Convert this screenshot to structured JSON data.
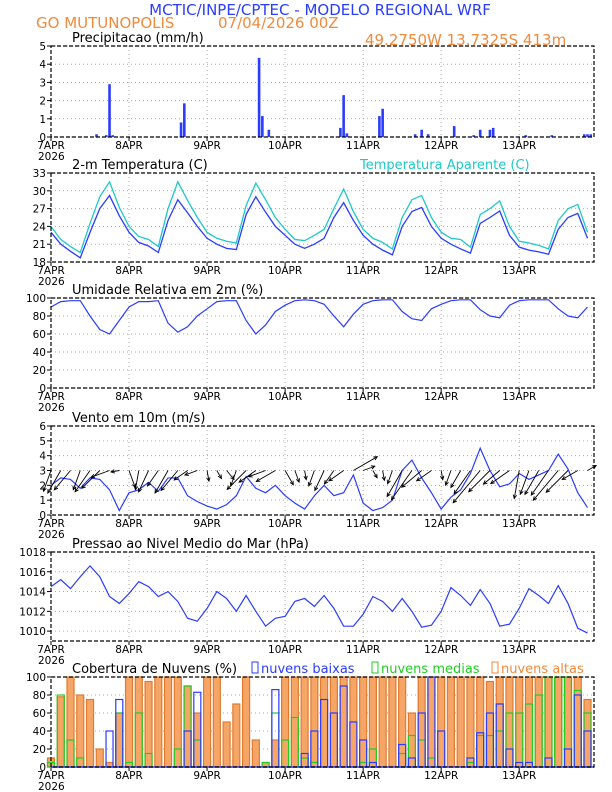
{
  "header": {
    "title": "MCTIC/INPE/CPTEC - MODELO REGIONAL WRF",
    "location": "GO MUTUNOPOLIS",
    "run": "07/04/2026 00Z",
    "coords": "49.2750W 13.7325S 413m"
  },
  "colors": {
    "title": "#2a3cff",
    "orange": "#f08a3c",
    "blue": "#2a3cff",
    "cyan": "#1ec8c8",
    "green": "#22cc22",
    "high_fill": "#f5a566"
  },
  "x_axis": {
    "labels": [
      "7APR",
      "8APR",
      "9APR",
      "10APR",
      "11APR",
      "12APR",
      "13APR"
    ],
    "year": "2026",
    "hours_range": [
      0,
      167
    ]
  },
  "chart_data": [
    {
      "id": "precip",
      "type": "bar",
      "title": "Precipitacao (mm/h)",
      "ylim": [
        0,
        5
      ],
      "yticks": [
        "0",
        "1",
        "2",
        "3",
        "4",
        "5"
      ],
      "series": [
        {
          "name": "precip",
          "step_hours": 1,
          "points": [
            [
              14,
              0.15
            ],
            [
              17,
              0.1
            ],
            [
              18,
              2.9
            ],
            [
              19,
              0.1
            ],
            [
              40,
              0.8
            ],
            [
              41,
              1.85
            ],
            [
              64,
              4.35
            ],
            [
              65,
              1.15
            ],
            [
              67,
              0.4
            ],
            [
              89,
              0.5
            ],
            [
              90,
              2.3
            ],
            [
              91,
              0.2
            ],
            [
              101,
              1.15
            ],
            [
              102,
              1.55
            ],
            [
              112,
              0.15
            ],
            [
              114,
              0.4
            ],
            [
              116,
              0.15
            ],
            [
              124,
              0.6
            ],
            [
              130,
              0.1
            ],
            [
              132,
              0.4
            ],
            [
              135,
              0.4
            ],
            [
              136,
              0.5
            ],
            [
              146,
              0.1
            ],
            [
              154,
              0.1
            ],
            [
              164,
              0.15
            ],
            [
              165,
              0.15
            ],
            [
              166,
              0.15
            ]
          ]
        }
      ]
    },
    {
      "id": "temp",
      "type": "line",
      "title": "2-m Temperatura (C)",
      "legend": "Temperatura Aparente (C)",
      "ylim": [
        18,
        33
      ],
      "yticks": [
        "18",
        "21",
        "24",
        "27",
        "30",
        "33"
      ],
      "series": [
        {
          "name": "Temperatura",
          "step_hours": 3,
          "values": [
            23,
            21,
            19.8,
            18.7,
            23,
            27,
            29.2,
            25.8,
            23,
            21.3,
            20.7,
            19.6,
            25,
            28.5,
            26.3,
            24,
            22,
            21,
            20.3,
            20.1,
            26,
            29,
            26.4,
            24,
            22.5,
            21,
            20.3,
            21,
            22,
            25.5,
            28,
            25,
            22.5,
            21,
            20,
            19.2,
            24,
            26.5,
            27.2,
            24,
            22,
            21,
            20.2,
            19.5,
            24.5,
            25.5,
            26.6,
            22.5,
            20.5,
            20,
            19.7,
            19.3,
            23.5,
            25.5,
            26.2,
            22
          ]
        },
        {
          "name": "Temperatura Aparente",
          "step_hours": 3,
          "values": [
            24,
            21.8,
            20.6,
            19.6,
            24.5,
            29,
            31.5,
            27.2,
            24,
            22.3,
            21.8,
            20.6,
            27,
            31.5,
            28.4,
            25.5,
            23,
            22,
            21.5,
            21.2,
            27.5,
            31.3,
            28.5,
            25.5,
            23.5,
            21.8,
            21.6,
            22.5,
            23.5,
            27,
            30.3,
            26.5,
            23.5,
            22,
            21.3,
            20.2,
            25.5,
            28.5,
            29.2,
            25.5,
            23,
            22,
            21.8,
            20.5,
            26,
            27,
            28.3,
            24,
            21.5,
            21.2,
            20.8,
            20.2,
            25,
            27,
            27.7,
            23
          ]
        }
      ]
    },
    {
      "id": "rh",
      "type": "line",
      "title": "Umidade Relativa em 2m (%)",
      "ylim": [
        0,
        100
      ],
      "yticks": [
        "0",
        "20",
        "40",
        "60",
        "80",
        "100"
      ],
      "series": [
        {
          "name": "UR",
          "step_hours": 3,
          "values": [
            90,
            96,
            97,
            97,
            80,
            65,
            60,
            75,
            90,
            96,
            96,
            97,
            72,
            62,
            68,
            80,
            88,
            96,
            97,
            97,
            75,
            60,
            70,
            85,
            92,
            97,
            98,
            97,
            93,
            80,
            68,
            82,
            93,
            97,
            98,
            98,
            85,
            77,
            75,
            88,
            93,
            97,
            98,
            98,
            87,
            80,
            78,
            92,
            97,
            98,
            98,
            98,
            88,
            80,
            78,
            90
          ]
        }
      ]
    },
    {
      "id": "wind",
      "type": "line",
      "title": "Vento em 10m (m/s)",
      "ylim": [
        0,
        6
      ],
      "yticks": [
        "0",
        "1",
        "2",
        "3",
        "4",
        "5",
        "6"
      ],
      "series": [
        {
          "name": "speed",
          "step_hours": 3,
          "values": [
            2,
            2.5,
            2.4,
            1.8,
            2.5,
            2.4,
            1.7,
            0.3,
            1.5,
            1.7,
            2.2,
            1.6,
            2.5,
            2.5,
            1.3,
            0.9,
            0.6,
            0.4,
            0.7,
            1.3,
            2.6,
            1.8,
            1.5,
            2,
            1.3,
            0.8,
            0.4,
            1.3,
            2,
            1.3,
            1.5,
            2.7,
            0.8,
            0.3,
            0.5,
            1,
            3,
            3.7,
            2.5,
            1.5,
            0.4,
            1.2,
            1.7,
            2.8,
            4.5,
            3,
            1.9,
            2.1,
            2.8,
            2.4,
            2.7,
            3,
            4.1,
            3.1,
            1.5,
            0.5
          ]
        }
      ],
      "vectors": {
        "step_hours": 3,
        "direction_to_deg": [
          200,
          210,
          220,
          200,
          215,
          225,
          250,
          260,
          160,
          190,
          205,
          215,
          210,
          220,
          235,
          250,
          170,
          150,
          140,
          200,
          225,
          235,
          250,
          240,
          150,
          160,
          170,
          200,
          205,
          215,
          235,
          60,
          70,
          150,
          170,
          200,
          210,
          215,
          230,
          235,
          170,
          200,
          210,
          215,
          220,
          225,
          230,
          235,
          190,
          200,
          210,
          215,
          220,
          225,
          240,
          60
        ]
      }
    },
    {
      "id": "pressure",
      "type": "line",
      "title": "Pressao ao Nivel Medio do Mar (hPa)",
      "ylim": [
        1009,
        1018
      ],
      "yticks": [
        "1010",
        "1012",
        "1014",
        "1016",
        "1018"
      ],
      "series": [
        {
          "name": "pnmm",
          "step_hours": 3,
          "values": [
            1014.5,
            1015.2,
            1014.3,
            1015.5,
            1016.6,
            1015.5,
            1013.5,
            1012.8,
            1013.8,
            1015,
            1014.5,
            1013.5,
            1014,
            1013,
            1011.3,
            1011,
            1012.3,
            1014,
            1013.3,
            1012,
            1013.6,
            1012,
            1010.5,
            1011.3,
            1011.5,
            1013,
            1013.3,
            1012.5,
            1013.6,
            1012.3,
            1010.5,
            1010.5,
            1011.7,
            1013.5,
            1013,
            1012,
            1013.3,
            1012,
            1010.4,
            1010.6,
            1012,
            1014.4,
            1013.6,
            1012.6,
            1014.2,
            1012.8,
            1010.5,
            1010.7,
            1012.3,
            1014.3,
            1013.6,
            1012.8,
            1014.6,
            1012.8,
            1010.3,
            1009.8
          ]
        }
      ]
    },
    {
      "id": "clouds",
      "type": "bar",
      "title": "Cobertura de Nuvens (%)",
      "ylim": [
        0,
        100
      ],
      "yticks": [
        "0",
        "20",
        "40",
        "60",
        "80",
        "100"
      ],
      "legend": [
        "nuvens baixas",
        "nuvens medias",
        "nuvens altas"
      ],
      "series": [
        {
          "name": "nuvens altas",
          "step_hours": 3,
          "values": [
            10,
            78,
            100,
            80,
            75,
            20,
            5,
            60,
            100,
            100,
            95,
            100,
            100,
            100,
            90,
            60,
            100,
            100,
            50,
            70,
            100,
            30,
            5,
            30,
            100,
            100,
            100,
            100,
            100,
            100,
            100,
            100,
            100,
            100,
            100,
            100,
            100,
            60,
            100,
            100,
            100,
            100,
            100,
            100,
            100,
            95,
            100,
            100,
            100,
            100,
            100,
            100,
            100,
            100,
            100,
            75
          ]
        },
        {
          "name": "nuvens medias",
          "step_hours": 3,
          "values": [
            5,
            80,
            30,
            10,
            0,
            0,
            0,
            60,
            5,
            60,
            15,
            0,
            0,
            20,
            90,
            30,
            0,
            0,
            0,
            0,
            0,
            0,
            5,
            60,
            30,
            55,
            10,
            5,
            0,
            0,
            0,
            0,
            5,
            20,
            0,
            0,
            15,
            35,
            30,
            10,
            0,
            0,
            0,
            5,
            35,
            35,
            40,
            60,
            60,
            70,
            80,
            100,
            100,
            100,
            85,
            60
          ]
        },
        {
          "name": "nuvens baixas",
          "step_hours": 3,
          "values": [
            0,
            0,
            0,
            0,
            0,
            0,
            40,
            75,
            0,
            0,
            0,
            0,
            0,
            0,
            40,
            83,
            0,
            0,
            0,
            0,
            0,
            0,
            0,
            86,
            0,
            0,
            15,
            40,
            75,
            60,
            90,
            50,
            30,
            5,
            0,
            0,
            25,
            10,
            60,
            100,
            40,
            0,
            0,
            10,
            38,
            60,
            70,
            20,
            5,
            5,
            0,
            10,
            0,
            20,
            80,
            40
          ]
        }
      ]
    }
  ]
}
